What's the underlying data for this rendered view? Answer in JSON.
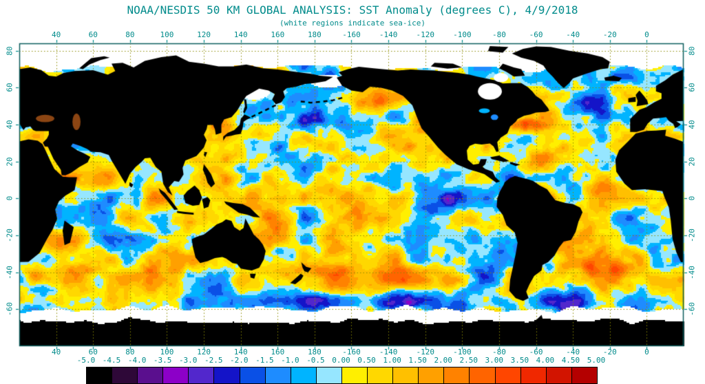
{
  "title": "NOAA/NESDIS 50 KM GLOBAL ANALYSIS: SST Anomaly (degrees C), 4/9/2018",
  "subtitle": "(white regions indicate sea-ice)",
  "axes": {
    "lon_tick_labels": [
      "40",
      "60",
      "80",
      "100",
      "120",
      "140",
      "160",
      "180",
      "-160",
      "-140",
      "-120",
      "-100",
      "-80",
      "-60",
      "-40",
      "-20",
      "0"
    ],
    "lon_tick_values": [
      40,
      60,
      80,
      100,
      120,
      140,
      160,
      180,
      200,
      220,
      240,
      260,
      280,
      300,
      320,
      340,
      360
    ],
    "lat_tick_labels": [
      "80",
      "60",
      "40",
      "20",
      "0",
      "-20",
      "-40",
      "-60"
    ],
    "lat_tick_values": [
      80,
      60,
      40,
      20,
      0,
      -20,
      -40,
      -60
    ]
  },
  "colorbar": {
    "tick_labels": [
      "-5.0",
      "-4.5",
      "-4.0",
      "-3.5",
      "-3.0",
      "-2.5",
      "-2.0",
      "-1.5",
      "-1.0",
      "-0.5",
      "0.00",
      "0.50",
      "1.00",
      "1.50",
      "2.00",
      "2.50",
      "3.00",
      "3.50",
      "4.00",
      "4.50",
      "5.00"
    ],
    "segment_colors": [
      "#000000",
      "#2e0838",
      "#5a0f8e",
      "#8c00c8",
      "#5227cc",
      "#1414c8",
      "#0a50e6",
      "#1e8cff",
      "#00b4ff",
      "#96e6ff",
      "#ffef00",
      "#ffd800",
      "#ffc000",
      "#ffa000",
      "#ff8200",
      "#ff6400",
      "#ff4600",
      "#f02800",
      "#d21400",
      "#b40000"
    ]
  },
  "colors": {
    "text": "#008b8b",
    "grid": "#8b8b00",
    "land": "#000000",
    "sea_ice": "#ffffff",
    "frame": "#0a5c5c",
    "background": "#ffffff"
  },
  "chart_data": {
    "type": "heatmap",
    "title": "NOAA/NESDIS 50 KM GLOBAL ANALYSIS: SST Anomaly (degrees C), 4/9/2018",
    "subtitle": "(white regions indicate sea-ice)",
    "variable": "SST Anomaly",
    "units": "degrees C",
    "date": "4/9/2018",
    "value_range": [
      -5,
      5
    ],
    "colorbar_step": 0.5,
    "legend_note": "white regions indicate sea-ice",
    "lon_ticks": [
      40,
      60,
      80,
      100,
      120,
      140,
      160,
      180,
      -160,
      -140,
      -120,
      -100,
      -80,
      -60,
      -40,
      -20,
      0
    ],
    "lat_ticks": [
      80,
      60,
      40,
      20,
      0,
      -20,
      -40,
      -60
    ],
    "colorbar_labels": [
      "-5.0",
      "-4.5",
      "-4.0",
      "-3.5",
      "-3.0",
      "-2.5",
      "-2.0",
      "-1.5",
      "-1.0",
      "-0.5",
      "0.00",
      "0.50",
      "1.00",
      "1.50",
      "2.00",
      "2.50",
      "3.00",
      "3.50",
      "4.00",
      "4.50",
      "5.00"
    ],
    "colorbar_colors": [
      "#000000",
      "#2e0838",
      "#5a0f8e",
      "#8c00c8",
      "#5227cc",
      "#1414c8",
      "#0a50e6",
      "#1e8cff",
      "#00b4ff",
      "#96e6ff",
      "#ffef00",
      "#ffd800",
      "#ffc000",
      "#ffa000",
      "#ff8200",
      "#ff6400",
      "#ff4600",
      "#f02800",
      "#d21400",
      "#b40000"
    ]
  }
}
